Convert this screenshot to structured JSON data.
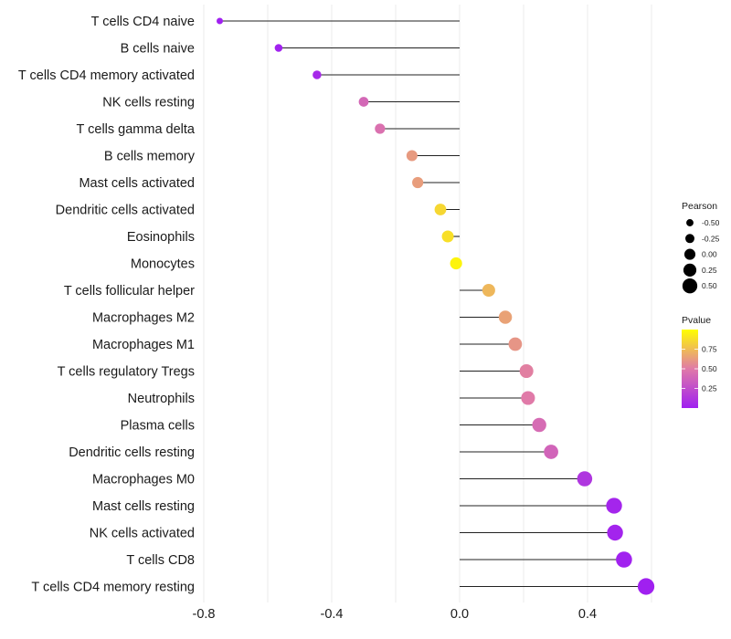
{
  "chart_data": {
    "type": "lollipop",
    "title": "",
    "xlabel": "",
    "ylabel": "",
    "xlim": [
      -0.8,
      0.6
    ],
    "x_ticks": [
      -0.8,
      -0.4,
      0.0,
      0.4
    ],
    "x_tick_labels": [
      "-0.8",
      "-0.4",
      "0.0",
      "0.4"
    ],
    "grid": true,
    "baseline": 0.0,
    "categories": [
      "T cells CD4 naive",
      "B cells naive",
      "T cells CD4 memory activated",
      "NK cells resting",
      "T cells gamma delta",
      "B cells memory",
      "Mast cells activated",
      "Dendritic cells activated",
      "Eosinophils",
      "Monocytes",
      "T cells follicular helper",
      "Macrophages M2",
      "Macrophages M1",
      "T cells regulatory  Tregs ",
      "Neutrophils",
      "Plasma cells",
      "Dendritic cells resting",
      "Macrophages M0",
      "Mast cells resting",
      "NK cells activated",
      "T cells CD8",
      "T cells CD4 memory resting"
    ],
    "series": [
      {
        "name": "Pearson",
        "values": [
          -0.75,
          -0.566,
          -0.446,
          -0.3,
          -0.249,
          -0.149,
          -0.131,
          -0.06,
          -0.037,
          -0.011,
          0.091,
          0.143,
          0.174,
          0.209,
          0.214,
          0.249,
          0.286,
          0.391,
          0.483,
          0.486,
          0.514,
          0.583
        ]
      },
      {
        "name": "Pvalue",
        "values": [
          0.001,
          0.01,
          0.05,
          0.4,
          0.45,
          0.62,
          0.63,
          0.85,
          0.88,
          0.96,
          0.73,
          0.65,
          0.6,
          0.52,
          0.5,
          0.42,
          0.38,
          0.12,
          0.03,
          0.02,
          0.01,
          0.001
        ]
      }
    ],
    "legend": {
      "position": "right",
      "size_legend": {
        "title": "Pearson",
        "values": [
          -0.5,
          -0.25,
          0.0,
          0.25,
          0.5
        ],
        "labels": [
          "-0.50",
          "-0.25",
          "0.00",
          "0.25",
          "0.50"
        ]
      },
      "color_legend": {
        "title": "Pvalue",
        "range": [
          0.0,
          1.0
        ],
        "ticks": [
          0.25,
          0.5,
          0.75
        ],
        "tick_labels": [
          "0.25",
          "0.50",
          "0.75"
        ],
        "low_color": "#A020F0",
        "mid_color": "#E07AA8",
        "high_color": "#FFFF00"
      }
    }
  }
}
